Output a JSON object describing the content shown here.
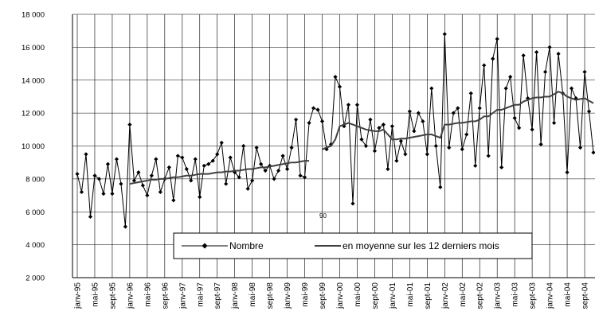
{
  "chart_data": {
    "type": "line",
    "categories": [
      "janv-95",
      null,
      null,
      null,
      "mai-95",
      null,
      null,
      null,
      "sept-95",
      null,
      null,
      null,
      "janv-96",
      null,
      null,
      null,
      "mai-96",
      null,
      null,
      null,
      "sept-96",
      null,
      null,
      null,
      "janv-97",
      null,
      null,
      null,
      "mai-97",
      null,
      null,
      null,
      "sept-97",
      null,
      null,
      null,
      "janv-98",
      null,
      null,
      null,
      "mai-98",
      null,
      null,
      null,
      "sept-98",
      null,
      null,
      null,
      "janv-99",
      null,
      null,
      null,
      "mai-99",
      null,
      null,
      null,
      "sept-99",
      null,
      null,
      null,
      "janv-00",
      null,
      null,
      null,
      "mai-00",
      null,
      null,
      null,
      "sept-00",
      null,
      null,
      null,
      "janv-01",
      null,
      null,
      null,
      "mai-01",
      null,
      null,
      null,
      "sept-01",
      null,
      null,
      null,
      "janv-02",
      null,
      null,
      null,
      "mai-02",
      null,
      null,
      null,
      "sept-02",
      null,
      null,
      null,
      "janv-03",
      null,
      null,
      null,
      "mai-03",
      null,
      null,
      null,
      "sept-03",
      null,
      null,
      null,
      "janv-04",
      null,
      null,
      null,
      "mai-04",
      null,
      null,
      null,
      "sept-04",
      null,
      null
    ],
    "series": [
      {
        "name": "Nombre",
        "color": "#000000",
        "marker": "diamond",
        "values": [
          8300,
          7200,
          9500,
          5700,
          8200,
          8000,
          7100,
          8900,
          7100,
          9200,
          7700,
          5100,
          11300,
          7900,
          8400,
          7600,
          7000,
          8200,
          9200,
          7200,
          8000,
          8700,
          6700,
          9400,
          9300,
          8600,
          7900,
          9200,
          6900,
          8800,
          8900,
          9100,
          9500,
          10200,
          7700,
          9300,
          8400,
          8100,
          10000,
          7400,
          7900,
          9900,
          8900,
          8500,
          8800,
          8000,
          8500,
          9400,
          8600,
          9900,
          11600,
          8200,
          8100,
          11400,
          12300,
          12200,
          11500,
          9800,
          10100,
          14200,
          13600,
          11200,
          12500,
          6500,
          12500,
          10400,
          10000,
          11600,
          9700,
          11100,
          11300,
          8600,
          11200,
          9100,
          10300,
          9500,
          12100,
          10900,
          12000,
          11500,
          9500,
          13500,
          10000,
          7500,
          16800,
          9900,
          12000,
          12300,
          9800,
          10700,
          13200,
          8800,
          12300,
          14900,
          9400,
          15300,
          16500,
          8700,
          13500,
          14200,
          11700,
          11100,
          15500,
          12900,
          11000,
          15700,
          10100,
          14500,
          16000,
          11400,
          15600,
          13200,
          8400,
          13500,
          12900,
          9900,
          14500,
          12100,
          9600
        ]
      },
      {
        "name": "en moyenne sur les 12 derniers mois",
        "color": "#404040",
        "values": [
          null,
          null,
          null,
          null,
          null,
          null,
          null,
          null,
          null,
          null,
          null,
          null,
          7700,
          7750,
          7800,
          7850,
          7900,
          7950,
          7950,
          8000,
          8000,
          8050,
          8100,
          8100,
          8150,
          8200,
          8200,
          8250,
          8300,
          8300,
          8300,
          8350,
          8400,
          8400,
          8450,
          8450,
          8500,
          8500,
          8550,
          8600,
          8600,
          8650,
          8700,
          8700,
          8750,
          8800,
          8850,
          8900,
          8950,
          9000,
          9000,
          9050,
          9100,
          9100,
          null,
          null,
          9800,
          9900,
          10000,
          10400,
          11200,
          11300,
          11400,
          11300,
          11200,
          11100,
          11000,
          10950,
          10900,
          10900,
          11000,
          10700,
          10400,
          10400,
          10450,
          10450,
          10500,
          10550,
          10600,
          10650,
          10700,
          10700,
          10600,
          10500,
          11300,
          11300,
          11350,
          11400,
          11400,
          11450,
          11500,
          11500,
          11600,
          11800,
          11800,
          12000,
          12200,
          12200,
          12300,
          12400,
          12500,
          12500,
          12700,
          12800,
          12900,
          12950,
          12950,
          13000,
          13000,
          13150,
          13300,
          13200,
          13000,
          12900,
          12800,
          12850,
          12900,
          12750,
          12600
        ]
      }
    ],
    "annotations": [
      "90"
    ],
    "ylim": [
      2000,
      18000
    ],
    "yticks": [
      {
        "value": 2000,
        "label": "2 000"
      },
      {
        "value": 4000,
        "label": "4 000"
      },
      {
        "value": 6000,
        "label": "6 000"
      },
      {
        "value": 8000,
        "label": "8 000"
      },
      {
        "value": 10000,
        "label": "10 000"
      },
      {
        "value": 12000,
        "label": "12 000"
      },
      {
        "value": 14000,
        "label": "14 000"
      },
      {
        "value": 16000,
        "label": "16 000"
      },
      {
        "value": 18000,
        "label": "18 000"
      }
    ],
    "grid": true,
    "legend": "bottom"
  }
}
